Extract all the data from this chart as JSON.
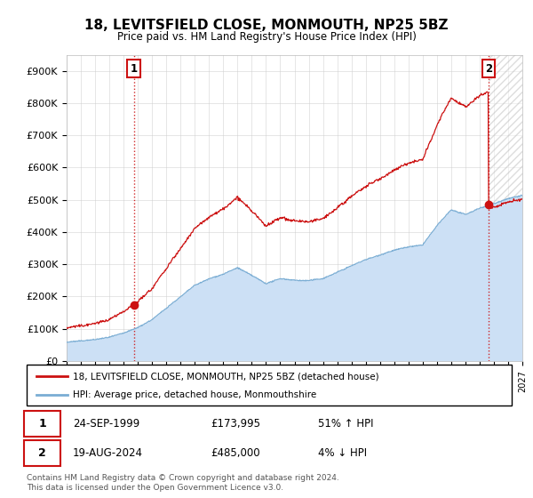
{
  "title": "18, LEVITSFIELD CLOSE, MONMOUTH, NP25 5BZ",
  "subtitle": "Price paid vs. HM Land Registry's House Price Index (HPI)",
  "ylim": [
    0,
    950000
  ],
  "yticks": [
    0,
    100000,
    200000,
    300000,
    400000,
    500000,
    600000,
    700000,
    800000,
    900000
  ],
  "ytick_labels": [
    "£0",
    "£100K",
    "£200K",
    "£300K",
    "£400K",
    "£500K",
    "£600K",
    "£700K",
    "£800K",
    "£900K"
  ],
  "hpi_color": "#7aadd4",
  "price_color": "#cc1111",
  "t1_year": 1999.73,
  "t2_year": 2024.63,
  "price1": 173995,
  "price2": 485000,
  "legend_line1": "18, LEVITSFIELD CLOSE, MONMOUTH, NP25 5BZ (detached house)",
  "legend_line2": "HPI: Average price, detached house, Monmouthshire",
  "table_row1": [
    "1",
    "24-SEP-1999",
    "£173,995",
    "51% ↑ HPI"
  ],
  "table_row2": [
    "2",
    "19-AUG-2024",
    "£485,000",
    "4% ↓ HPI"
  ],
  "footnote": "Contains HM Land Registry data © Crown copyright and database right 2024.\nThis data is licensed under the Open Government Licence v3.0.",
  "background_color": "#ffffff",
  "grid_color": "#cccccc",
  "hpi_fill_color": "#cce0f5",
  "hpi_anchors_t": [
    1995.0,
    1996.0,
    1997.0,
    1998.0,
    1999.0,
    2000.0,
    2001.0,
    2002.0,
    2003.0,
    2004.0,
    2005.0,
    2006.0,
    2007.0,
    2008.0,
    2009.0,
    2010.0,
    2011.0,
    2012.0,
    2013.0,
    2014.0,
    2015.0,
    2016.0,
    2017.0,
    2018.0,
    2019.0,
    2020.0,
    2021.0,
    2022.0,
    2023.0,
    2024.0,
    2025.0,
    2026.0,
    2027.0
  ],
  "hpi_anchors_v": [
    58000,
    63000,
    68000,
    75000,
    88000,
    105000,
    130000,
    165000,
    200000,
    235000,
    255000,
    270000,
    290000,
    265000,
    240000,
    255000,
    250000,
    248000,
    255000,
    275000,
    295000,
    315000,
    330000,
    345000,
    355000,
    360000,
    420000,
    470000,
    455000,
    475000,
    490000,
    505000,
    515000
  ]
}
